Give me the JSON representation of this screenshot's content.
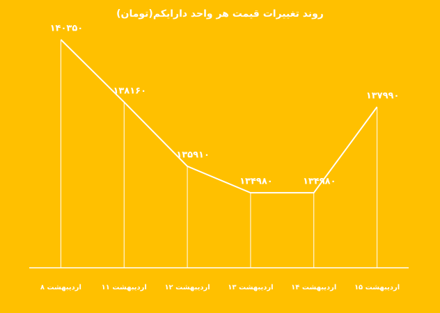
{
  "chart_data": {
    "type": "line",
    "title": "روند تغییرات قیمت هر واحد دارایکم(تومان)",
    "categories": [
      "۸ اردیبهشت",
      "۱۱ اردیبهشت",
      "۱۲ اردیبهشت",
      "۱۳ اردیبهشت",
      "۱۴ اردیبهشت",
      "۱۵ اردیبهشت"
    ],
    "values": [
      140350,
      138160,
      135910,
      134980,
      134980,
      137990
    ],
    "value_labels": [
      "۱۴۰۳۵۰",
      "۱۳۸۱۶۰",
      "۱۳۵۹۱۰",
      "۱۳۴۹۸۰",
      "۱۳۴۹۸۰",
      "۱۳۷۹۹۰"
    ],
    "color": "#ffffff",
    "background": "#FFC000",
    "ylim": [
      132350,
      140350
    ]
  }
}
